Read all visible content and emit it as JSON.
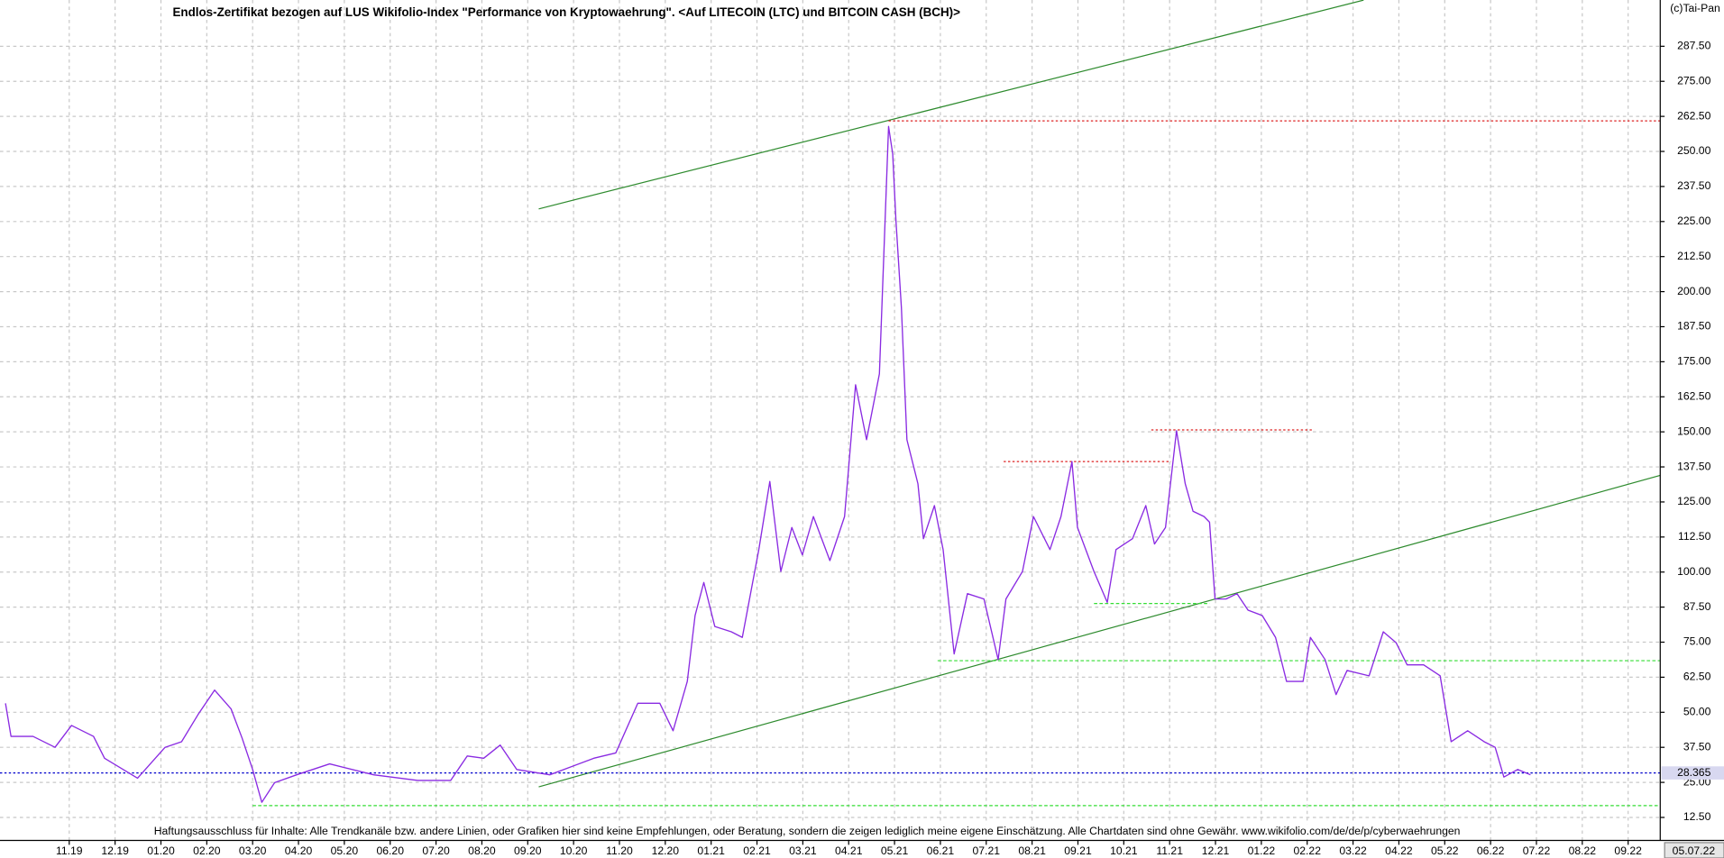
{
  "chart_data": {
    "type": "line",
    "title": "Endlos-Zertifikat bezogen auf LUS Wikifolio-Index \"Performance von Kryptowaehrung\". <Auf LITECOIN (LTC) und BITCOIN CASH (BCH)>",
    "copyright": "(c)Tai-Pan",
    "disclaimer": "Haftungsausschluss für Inhalte: Alle Trendkanäle bzw. andere Linien, oder Grafiken hier sind keine Empfehlungen, oder Beratung, sondern die zeigen lediglich meine eigene Einschätzung. Alle Chartdaten sind ohne Gewähr.  www.wikifolio.com/de/de/p/cyberwaehrungen",
    "date_label": "05.07.22",
    "last_value": 28.365,
    "last_value_color": "#0000cc",
    "grid": true,
    "xlim": [
      -1.51,
      34.7
    ],
    "ylim": [
      4.3,
      304
    ],
    "xticks": [
      {
        "value": 0,
        "label": "11.19"
      },
      {
        "value": 1,
        "label": "12.19"
      },
      {
        "value": 2,
        "label": "01.20"
      },
      {
        "value": 3,
        "label": "02.20"
      },
      {
        "value": 4,
        "label": "03.20"
      },
      {
        "value": 5,
        "label": "04.20"
      },
      {
        "value": 6,
        "label": "05.20"
      },
      {
        "value": 7,
        "label": "06.20"
      },
      {
        "value": 8,
        "label": "07.20"
      },
      {
        "value": 9,
        "label": "08.20"
      },
      {
        "value": 10,
        "label": "09.20"
      },
      {
        "value": 11,
        "label": "10.20"
      },
      {
        "value": 12,
        "label": "11.20"
      },
      {
        "value": 13,
        "label": "12.20"
      },
      {
        "value": 14,
        "label": "01.21"
      },
      {
        "value": 15,
        "label": "02.21"
      },
      {
        "value": 16,
        "label": "03.21"
      },
      {
        "value": 17,
        "label": "04.21"
      },
      {
        "value": 18,
        "label": "05.21"
      },
      {
        "value": 19,
        "label": "06.21"
      },
      {
        "value": 20,
        "label": "07.21"
      },
      {
        "value": 21,
        "label": "08.21"
      },
      {
        "value": 22,
        "label": "09.21"
      },
      {
        "value": 23,
        "label": "10.21"
      },
      {
        "value": 24,
        "label": "11.21"
      },
      {
        "value": 25,
        "label": "12.21"
      },
      {
        "value": 26,
        "label": "01.22"
      },
      {
        "value": 27,
        "label": "02.22"
      },
      {
        "value": 28,
        "label": "03.22"
      },
      {
        "value": 29,
        "label": "04.22"
      },
      {
        "value": 30,
        "label": "05.22"
      },
      {
        "value": 31,
        "label": "06.22"
      },
      {
        "value": 32,
        "label": "07.22"
      },
      {
        "value": 33,
        "label": "08.22"
      },
      {
        "value": 34,
        "label": "09.22"
      }
    ],
    "yticks": [
      {
        "value": 12.5,
        "label": "12.50"
      },
      {
        "value": 25,
        "label": "25.00"
      },
      {
        "value": 37.5,
        "label": "37.50"
      },
      {
        "value": 50,
        "label": "50.00"
      },
      {
        "value": 62.5,
        "label": "62.50"
      },
      {
        "value": 75,
        "label": "75.00"
      },
      {
        "value": 87.5,
        "label": "87.50"
      },
      {
        "value": 100,
        "label": "100.00"
      },
      {
        "value": 112.5,
        "label": "112.50"
      },
      {
        "value": 125,
        "label": "125.00"
      },
      {
        "value": 137.5,
        "label": "137.50"
      },
      {
        "value": 150,
        "label": "150.00"
      },
      {
        "value": 162.5,
        "label": "162.50"
      },
      {
        "value": 175,
        "label": "175.00"
      },
      {
        "value": 187.5,
        "label": "187.50"
      },
      {
        "value": 200,
        "label": "200.00"
      },
      {
        "value": 212.5,
        "label": "212.50"
      },
      {
        "value": 225,
        "label": "225.00"
      },
      {
        "value": 237.5,
        "label": "237.50"
      },
      {
        "value": 250,
        "label": "250.00"
      },
      {
        "value": 262.5,
        "label": "262.50"
      },
      {
        "value": 275,
        "label": "275.00"
      },
      {
        "value": 287.5,
        "label": "287.50"
      }
    ],
    "series": [
      {
        "color": "#8a2be2",
        "x": [
          -1.39,
          -1.27,
          -0.79,
          -0.31,
          0.05,
          0.53,
          0.77,
          1.49,
          2.09,
          2.45,
          2.81,
          3.17,
          3.53,
          3.77,
          4.0,
          4.2,
          4.48,
          4.96,
          5.68,
          6.64,
          7.6,
          8.32,
          8.68,
          9.04,
          9.4,
          9.76,
          10.48,
          11.44,
          11.92,
          12.4,
          12.88,
          13.17,
          13.48,
          13.65,
          13.84,
          14.08,
          14.44,
          14.68,
          15.04,
          15.28,
          15.52,
          15.76,
          15.99,
          16.23,
          16.59,
          16.91,
          17.15,
          17.39,
          17.67,
          17.87,
          17.96,
          18.03,
          18.15,
          18.27,
          18.51,
          18.63,
          18.87,
          19.06,
          19.3,
          19.59,
          19.95,
          20.26,
          20.43,
          20.79,
          21.03,
          21.39,
          21.63,
          21.87,
          21.99,
          22.35,
          22.64,
          22.83,
          23.19,
          23.48,
          23.67,
          23.91,
          24.15,
          24.34,
          24.51,
          24.75,
          24.87,
          24.99,
          25.23,
          25.47,
          25.71,
          26.02,
          26.31,
          26.55,
          26.91,
          27.07,
          27.39,
          27.63,
          27.87,
          28.35,
          28.66,
          28.94,
          29.18,
          29.54,
          29.9,
          30.14,
          30.5,
          30.86,
          31.1,
          31.29,
          31.59,
          31.87
        ],
        "values": [
          53.2,
          41.4,
          41.4,
          37.5,
          45.3,
          41.4,
          33.6,
          26.5,
          37.5,
          39.5,
          49.2,
          57.9,
          51.2,
          40.8,
          29.6,
          17.9,
          24.9,
          27.7,
          31.6,
          27.7,
          25.7,
          25.7,
          34.4,
          33.6,
          38.3,
          29.6,
          27.7,
          33.6,
          35.5,
          53.2,
          53.2,
          43.4,
          61.0,
          84.5,
          96.3,
          80.6,
          78.7,
          76.7,
          108.0,
          132.3,
          100.2,
          115.9,
          106.1,
          119.8,
          104.1,
          119.8,
          166.8,
          147.2,
          170.7,
          258.9,
          249.1,
          225.6,
          194.2,
          147.2,
          131.5,
          111.9,
          123.7,
          108.0,
          70.8,
          92.3,
          90.4,
          68.8,
          90.4,
          100.2,
          119.8,
          108.0,
          119.8,
          139.4,
          115.9,
          100.2,
          89.2,
          108.0,
          111.9,
          123.7,
          110.0,
          115.9,
          150.4,
          131.5,
          121.7,
          119.8,
          117.8,
          90.4,
          90.4,
          92.3,
          86.4,
          84.5,
          76.7,
          61.0,
          61.0,
          76.7,
          68.8,
          56.3,
          64.9,
          63.0,
          78.7,
          74.8,
          66.9,
          66.9,
          63.0,
          39.5,
          43.4,
          39.5,
          37.5,
          26.9,
          29.6,
          27.7
        ]
      }
    ],
    "reference_lines": [
      {
        "color": "#2e8b2e",
        "dash": "none",
        "x": [
          10.24,
          28.23
        ],
        "y": [
          229.5,
          303.96
        ]
      },
      {
        "color": "#2e8b2e",
        "dash": "none",
        "x": [
          10.24,
          34.75
        ],
        "y": [
          23.4,
          134.7
        ]
      },
      {
        "color": "#dd2222",
        "dash": "2,2",
        "x": [
          17.87,
          34.7
        ],
        "y": [
          260.9,
          260.9
        ]
      },
      {
        "color": "#dd2222",
        "dash": "2,2",
        "x": [
          20.38,
          24.03
        ],
        "y": [
          139.4,
          139.4
        ]
      },
      {
        "color": "#dd2222",
        "dash": "2,2",
        "x": [
          23.6,
          27.15
        ],
        "y": [
          150.7,
          150.7
        ]
      },
      {
        "color": "#33dd33",
        "dash": "3,2",
        "x": [
          22.35,
          24.87
        ],
        "y": [
          88.8,
          88.8
        ]
      },
      {
        "color": "#33dd33",
        "dash": "3,2",
        "x": [
          18.94,
          34.7
        ],
        "y": [
          68.4,
          68.4
        ]
      },
      {
        "color": "#33dd33",
        "dash": "3,2",
        "x": [
          4.0,
          34.7
        ],
        "y": [
          16.7,
          16.7
        ]
      }
    ]
  }
}
